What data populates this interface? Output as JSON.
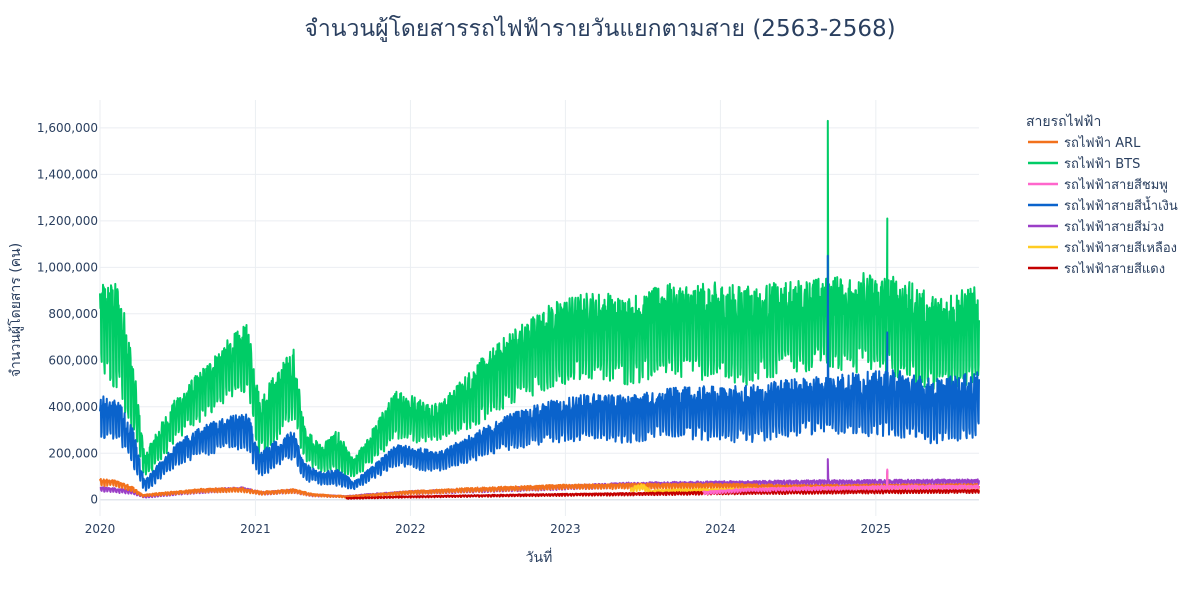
{
  "chart_data": {
    "type": "line",
    "title": "จำนวนผู้โดยสารรถไฟฟ้ารายวันแยกตามสาย (2563-2568)",
    "xlabel": "วันที่",
    "ylabel": "จำนวนผู้โดยสาร (คน)",
    "legend_title": "สายรถไฟฟ้า",
    "legend_position": "right",
    "grid": true,
    "xlim": [
      "2020-01-01",
      "2025-09-01"
    ],
    "ylim": [
      -70000,
      1720000
    ],
    "x_ticks": [
      "2020",
      "2021",
      "2022",
      "2023",
      "2024",
      "2025"
    ],
    "y_ticks": [
      0,
      200000,
      400000,
      600000,
      800000,
      1000000,
      1200000,
      1400000,
      1600000
    ],
    "y_tick_labels": [
      "0",
      "200,000",
      "400,000",
      "600,000",
      "800,000",
      "1,000,000",
      "1,200,000",
      "1,400,000",
      "1,600,000"
    ],
    "series": [
      {
        "name": "รถไฟฟ้า ARL",
        "color": "#f2711c",
        "x": [
          "2020-01-01",
          "2020-02-01",
          "2020-03-15",
          "2020-04-10",
          "2020-06-01",
          "2020-09-01",
          "2020-12-01",
          "2021-01-15",
          "2021-04-01",
          "2021-05-15",
          "2021-08-01",
          "2021-10-01",
          "2022-01-01",
          "2022-06-01",
          "2023-01-01",
          "2023-07-01",
          "2024-01-01",
          "2024-07-01",
          "2025-01-01",
          "2025-09-01"
        ],
        "low": [
          55000,
          60000,
          35000,
          12000,
          18000,
          30000,
          32000,
          20000,
          28000,
          14000,
          9000,
          14000,
          22000,
          32000,
          44000,
          45000,
          46000,
          42000,
          44000,
          46000
        ],
        "high": [
          90000,
          85000,
          60000,
          22000,
          32000,
          48000,
          52000,
          36000,
          46000,
          26000,
          16000,
          24000,
          38000,
          52000,
          66000,
          70000,
          70000,
          64000,
          66000,
          68000
        ]
      },
      {
        "name": "รถไฟฟ้า BTS",
        "color": "#00cc66",
        "x": [
          "2020-01-01",
          "2020-02-15",
          "2020-03-20",
          "2020-04-15",
          "2020-05-15",
          "2020-07-01",
          "2020-09-01",
          "2020-11-01",
          "2020-12-15",
          "2021-01-10",
          "2021-02-20",
          "2021-04-01",
          "2021-04-25",
          "2021-06-01",
          "2021-07-15",
          "2021-08-20",
          "2021-10-01",
          "2021-12-01",
          "2022-02-01",
          "2022-03-15",
          "2022-06-01",
          "2022-09-01",
          "2022-12-01",
          "2023-03-01",
          "2023-06-01",
          "2023-09-01",
          "2023-12-01",
          "2024-03-01",
          "2024-06-01",
          "2024-09-01",
          "2024-12-01",
          "2025-03-01",
          "2025-05-15",
          "2025-09-01"
        ],
        "low": [
          500000,
          420000,
          250000,
          90000,
          140000,
          250000,
          330000,
          420000,
          410000,
          170000,
          240000,
          320000,
          160000,
          110000,
          100000,
          80000,
          140000,
          250000,
          230000,
          250000,
          300000,
          400000,
          460000,
          500000,
          470000,
          520000,
          480000,
          470000,
          520000,
          540000,
          520000,
          500000,
          440000,
          470000
        ],
        "high": [
          950000,
          930000,
          600000,
          190000,
          300000,
          450000,
          570000,
          700000,
          760000,
          450000,
          550000,
          660000,
          330000,
          240000,
          300000,
          170000,
          300000,
          480000,
          430000,
          420000,
          580000,
          740000,
          850000,
          900000,
          880000,
          930000,
          940000,
          920000,
          940000,
          960000,
          980000,
          960000,
          880000,
          920000
        ]
      },
      {
        "name": "รถไฟฟ้าสายสีชมพู",
        "color": "#ff66cc",
        "x": [
          "2023-11-21",
          "2024-03-01",
          "2024-07-01",
          "2024-12-01",
          "2025-04-01",
          "2025-09-01"
        ],
        "low": [
          22000,
          34000,
          38000,
          42000,
          44000,
          46000
        ],
        "high": [
          36000,
          48000,
          54000,
          58000,
          62000,
          62000
        ]
      },
      {
        "name": "รถไฟฟ้าสายสีน้ำเงิน",
        "color": "#0a63cc",
        "x": [
          "2020-01-01",
          "2020-02-15",
          "2020-03-20",
          "2020-04-15",
          "2020-05-15",
          "2020-07-01",
          "2020-09-01",
          "2020-11-01",
          "2020-12-15",
          "2021-01-10",
          "2021-02-20",
          "2021-04-01",
          "2021-04-25",
          "2021-06-01",
          "2021-07-15",
          "2021-08-20",
          "2021-10-01",
          "2021-12-01",
          "2022-02-01",
          "2022-03-15",
          "2022-06-01",
          "2022-09-01",
          "2022-12-01",
          "2023-03-01",
          "2023-06-01",
          "2023-09-01",
          "2023-12-01",
          "2024-03-01",
          "2024-06-01",
          "2024-09-01",
          "2024-12-01",
          "2025-03-01",
          "2025-05-15",
          "2025-09-01"
        ],
        "low": [
          260000,
          240000,
          130000,
          30000,
          70000,
          140000,
          180000,
          210000,
          200000,
          80000,
          130000,
          170000,
          80000,
          60000,
          55000,
          40000,
          80000,
          140000,
          120000,
          120000,
          160000,
          210000,
          230000,
          250000,
          230000,
          260000,
          240000,
          230000,
          250000,
          270000,
          260000,
          250000,
          220000,
          250000
        ],
        "high": [
          450000,
          420000,
          300000,
          80000,
          150000,
          250000,
          320000,
          360000,
          370000,
          200000,
          260000,
          300000,
          160000,
          120000,
          130000,
          80000,
          140000,
          240000,
          220000,
          210000,
          290000,
          380000,
          430000,
          460000,
          450000,
          480000,
          490000,
          490000,
          520000,
          540000,
          550000,
          560000,
          520000,
          550000
        ]
      },
      {
        "name": "รถไฟฟ้าสายสีม่วง",
        "color": "#9b3fc7",
        "x": [
          "2020-01-01",
          "2020-03-15",
          "2020-04-15",
          "2020-06-01",
          "2020-09-01",
          "2020-12-01",
          "2021-01-15",
          "2021-04-01",
          "2021-05-15",
          "2021-08-01",
          "2021-10-01",
          "2022-01-01",
          "2022-06-01",
          "2023-01-01",
          "2023-06-01",
          "2024-01-01",
          "2024-07-01",
          "2025-01-01",
          "2025-09-01"
        ],
        "low": [
          35000,
          24000,
          8000,
          15000,
          28000,
          36000,
          20000,
          28000,
          14000,
          10000,
          16000,
          22000,
          30000,
          42000,
          50000,
          56000,
          58000,
          60000,
          62000
        ],
        "high": [
          56000,
          42000,
          16000,
          28000,
          46000,
          54000,
          34000,
          44000,
          24000,
          16000,
          26000,
          38000,
          48000,
          62000,
          74000,
          80000,
          84000,
          86000,
          88000
        ]
      },
      {
        "name": "รถไฟฟ้าสายสีเหลือง",
        "color": "#ffcc22",
        "x": [
          "2023-06-03",
          "2023-07-03",
          "2023-07-20",
          "2023-09-01",
          "2024-01-01",
          "2024-06-01",
          "2025-01-01",
          "2025-09-01"
        ],
        "low": [
          30000,
          40000,
          25000,
          28000,
          30000,
          34000,
          38000,
          42000
        ],
        "high": [
          55000,
          70000,
          40000,
          45000,
          48000,
          52000,
          56000,
          60000
        ]
      },
      {
        "name": "รถไฟฟ้าสายสีแดง",
        "color": "#c40000",
        "x": [
          "2021-08-02",
          "2021-12-01",
          "2022-06-01",
          "2023-01-01",
          "2023-07-01",
          "2024-01-01",
          "2024-07-01",
          "2025-01-01",
          "2025-09-01"
        ],
        "low": [
          3000,
          8000,
          12000,
          16000,
          18000,
          22000,
          24000,
          26000,
          28000
        ],
        "high": [
          8000,
          14000,
          20000,
          26000,
          30000,
          36000,
          40000,
          42000,
          44000
        ]
      }
    ],
    "spikes": [
      {
        "series": "รถไฟฟ้า BTS",
        "x": "2024-09-10",
        "y": 1630000
      },
      {
        "series": "รถไฟฟ้า BTS",
        "x": "2025-01-28",
        "y": 1210000
      },
      {
        "series": "รถไฟฟ้าสายสีน้ำเงิน",
        "x": "2024-09-10",
        "y": 1050000
      },
      {
        "series": "รถไฟฟ้าสายสีน้ำเงิน",
        "x": "2025-01-28",
        "y": 720000
      },
      {
        "series": "รถไฟฟ้าสายสีม่วง",
        "x": "2024-09-10",
        "y": 175000
      },
      {
        "series": "รถไฟฟ้าสายสีม่วง",
        "x": "2025-01-28",
        "y": 125000
      },
      {
        "series": "รถไฟฟ้าสายสีชมพู",
        "x": "2025-01-28",
        "y": 130000
      },
      {
        "series": "รถไฟฟ้าสายสีเหลือง",
        "x": "2025-01-28",
        "y": 110000
      }
    ]
  }
}
